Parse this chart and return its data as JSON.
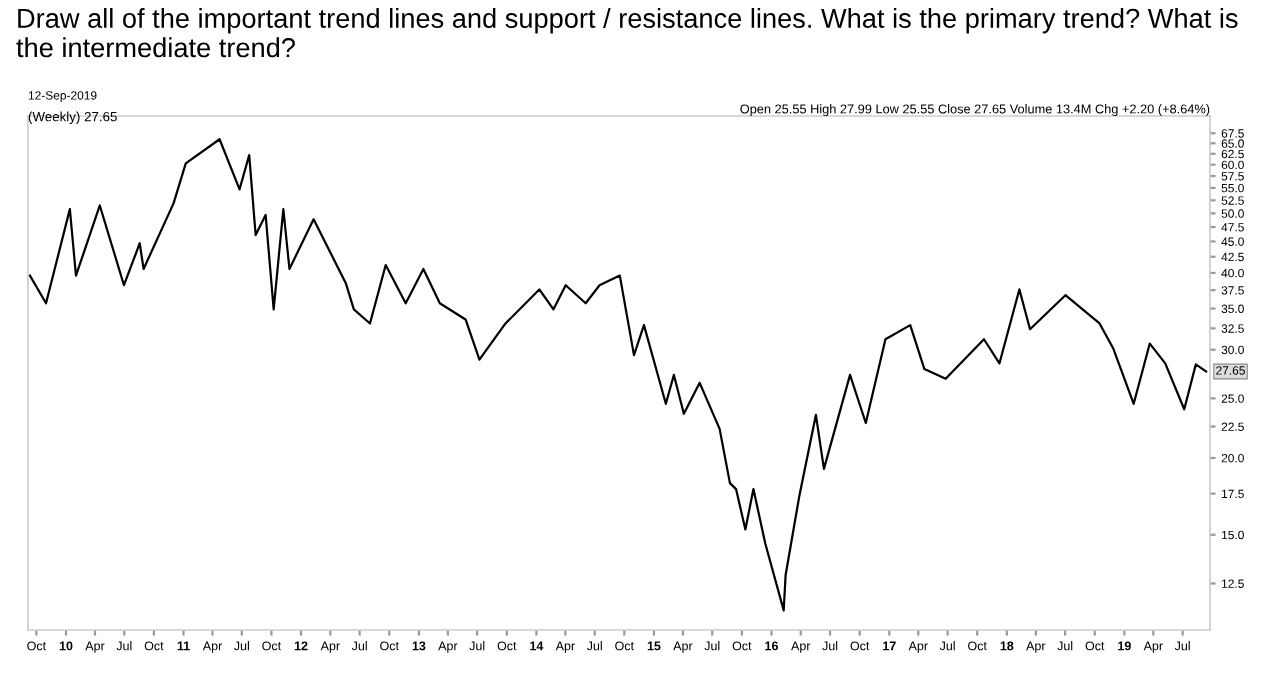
{
  "chart_data": {
    "type": "line",
    "title": "Draw all of the important trend lines and support / resistance lines. What is the primary trend? What is the intermediate trend?",
    "annotations": [
      "12-Sep-2019",
      "(Weekly) 27.65",
      "Open 25.55 High 27.99 Low 25.55 Close 27.65 Volume 13.4M Chg +2.20 (+8.64%)",
      {
        "text": "27.65",
        "x": "2019-09-12",
        "y": 27.65
      }
    ],
    "log": "y",
    "grid": false,
    "legend": false,
    "marker": "none",
    "line_style": "solid",
    "xlim": [
      "2009-09-05",
      "2019-09-24"
    ],
    "ylim": [
      10.5,
      72
    ],
    "xticks": [
      {
        "value": "2009-10-01",
        "label": "Oct"
      },
      {
        "value": "2010-01-01",
        "label": "10"
      },
      {
        "value": "2010-04-01",
        "label": "Apr"
      },
      {
        "value": "2010-07-01",
        "label": "Jul"
      },
      {
        "value": "2010-10-01",
        "label": "Oct"
      },
      {
        "value": "2011-01-01",
        "label": "11"
      },
      {
        "value": "2011-04-01",
        "label": "Apr"
      },
      {
        "value": "2011-07-01",
        "label": "Jul"
      },
      {
        "value": "2011-10-01",
        "label": "Oct"
      },
      {
        "value": "2012-01-01",
        "label": "12"
      },
      {
        "value": "2012-04-01",
        "label": "Apr"
      },
      {
        "value": "2012-07-01",
        "label": "Jul"
      },
      {
        "value": "2012-10-01",
        "label": "Oct"
      },
      {
        "value": "2013-01-01",
        "label": "13"
      },
      {
        "value": "2013-04-01",
        "label": "Apr"
      },
      {
        "value": "2013-07-01",
        "label": "Jul"
      },
      {
        "value": "2013-10-01",
        "label": "Oct"
      },
      {
        "value": "2014-01-01",
        "label": "14"
      },
      {
        "value": "2014-04-01",
        "label": "Apr"
      },
      {
        "value": "2014-07-01",
        "label": "Jul"
      },
      {
        "value": "2014-10-01",
        "label": "Oct"
      },
      {
        "value": "2015-01-01",
        "label": "15"
      },
      {
        "value": "2015-04-01",
        "label": "Apr"
      },
      {
        "value": "2015-07-01",
        "label": "Jul"
      },
      {
        "value": "2015-10-01",
        "label": "Oct"
      },
      {
        "value": "2016-01-01",
        "label": "16"
      },
      {
        "value": "2016-04-01",
        "label": "Apr"
      },
      {
        "value": "2016-07-01",
        "label": "Jul"
      },
      {
        "value": "2016-10-01",
        "label": "Oct"
      },
      {
        "value": "2017-01-01",
        "label": "17"
      },
      {
        "value": "2017-04-01",
        "label": "Apr"
      },
      {
        "value": "2017-07-01",
        "label": "Jul"
      },
      {
        "value": "2017-10-01",
        "label": "Oct"
      },
      {
        "value": "2018-01-01",
        "label": "18"
      },
      {
        "value": "2018-04-01",
        "label": "Apr"
      },
      {
        "value": "2018-07-01",
        "label": "Jul"
      },
      {
        "value": "2018-10-01",
        "label": "Oct"
      },
      {
        "value": "2019-01-01",
        "label": "19"
      },
      {
        "value": "2019-04-01",
        "label": "Apr"
      },
      {
        "value": "2019-07-01",
        "label": "Jul"
      }
    ],
    "yticks": [
      12.5,
      {
        "value": 15,
        "label": "15.0"
      },
      17.5,
      {
        "value": 20,
        "label": "20.0"
      },
      22.5,
      {
        "value": 25,
        "label": "25.0"
      },
      {
        "value": 30,
        "label": "30.0"
      },
      32.5,
      {
        "value": 35,
        "label": "35.0"
      },
      37.5,
      {
        "value": 40,
        "label": "40.0"
      },
      42.5,
      {
        "value": 45,
        "label": "45.0"
      },
      47.5,
      {
        "value": 50,
        "label": "50.0"
      },
      52.5,
      {
        "value": 55,
        "label": "55.0"
      },
      57.5,
      {
        "value": 60,
        "label": "60.0"
      },
      62.5,
      {
        "value": 65,
        "label": "65.0"
      },
      67.5
    ],
    "x": [
      "2009-09-11",
      "2009-10-31",
      "2010-01-13",
      "2010-02-01",
      "2010-04-16",
      "2010-06-30",
      "2010-08-18",
      "2010-08-30",
      "2010-12-01",
      "2011-01-08",
      "2011-04-23",
      "2011-06-24",
      "2011-07-24",
      "2011-08-13",
      "2011-09-13",
      "2011-10-08",
      "2011-11-07",
      "2011-11-26",
      "2012-02-09",
      "2012-05-19",
      "2012-06-13",
      "2012-08-02",
      "2012-09-20",
      "2012-11-21",
      "2013-01-15",
      "2013-03-07",
      "2013-05-26",
      "2013-07-08",
      "2013-09-27",
      "2014-01-10",
      "2014-02-23",
      "2014-04-02",
      "2014-06-03",
      "2014-07-16",
      "2014-09-17",
      "2014-10-31",
      "2014-12-01",
      "2015-02-07",
      "2015-03-04",
      "2015-04-04",
      "2015-05-23",
      "2015-07-24",
      "2015-08-25",
      "2015-09-13",
      "2015-10-12",
      "2015-11-06",
      "2015-12-13",
      "2016-02-08",
      "2016-02-14",
      "2016-03-28",
      "2016-05-18",
      "2016-06-12",
      "2016-09-01",
      "2016-10-20",
      "2016-12-20",
      "2017-03-07",
      "2017-04-20",
      "2017-06-25",
      "2017-10-22",
      "2017-12-09",
      "2018-02-09",
      "2018-03-14",
      "2018-07-02",
      "2018-10-16",
      "2018-11-28",
      "2019-01-30",
      "2019-03-21",
      "2019-05-08",
      "2019-07-06",
      "2019-08-11",
      "2019-09-12"
    ],
    "series": [
      {
        "color": "#000000",
        "values": [
          39.6,
          35.7,
          50.8,
          39.6,
          51.5,
          38.2,
          44.7,
          40.6,
          51.9,
          60.3,
          66,
          54.7,
          62.2,
          46.1,
          49.7,
          34.9,
          50.8,
          40.6,
          48.9,
          38.5,
          34.9,
          33.1,
          41.2,
          35.7,
          40.6,
          35.7,
          33.6,
          28.9,
          33.1,
          37.6,
          34.9,
          38.2,
          35.7,
          38.2,
          39.6,
          29.4,
          32.9,
          24.5,
          27.3,
          23.6,
          26.5,
          22.3,
          18.2,
          17.8,
          15.3,
          17.8,
          14.5,
          11.3,
          12.9,
          17.4,
          23.5,
          19.2,
          27.3,
          22.8,
          31.2,
          32.9,
          27.9,
          26.9,
          31.2,
          28.5,
          37.6,
          32.4,
          36.8,
          33.1,
          30.1,
          24.5,
          30.7,
          28.5,
          24,
          28.4,
          27.65
        ]
      }
    ]
  }
}
